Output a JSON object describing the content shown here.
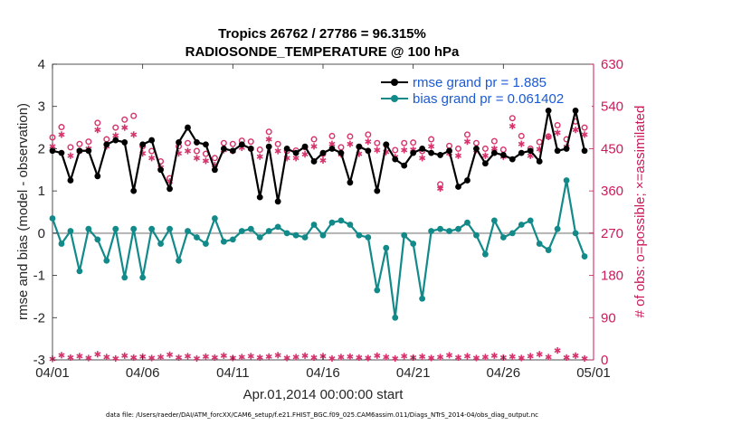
{
  "chart_data": {
    "type": "line",
    "title": "Tropics 26762 / 27786 = 96.315%",
    "subtitle": "RADIOSONDE_TEMPERATURE @ 100 hPa",
    "xlabel": "Apr.01,2014 00:00:00 start",
    "ylabel": "rmse and bias (model - observation)",
    "ylabel_right": "# of obs: o=possible; ×=assimilated",
    "x_ticks": [
      "04/01",
      "04/06",
      "04/11",
      "04/16",
      "04/21",
      "04/26",
      "05/01"
    ],
    "y_ticks": [
      "4",
      "3",
      "2",
      "1",
      "0",
      "-1",
      "-2",
      "-3"
    ],
    "y_right_ticks": [
      "630",
      "540",
      "450",
      "360",
      "270",
      "180",
      "90",
      "0"
    ],
    "xlim": [
      0,
      30
    ],
    "ylim": [
      -3,
      4
    ],
    "y_right_lim": [
      0,
      630
    ],
    "colors": {
      "rmse": "#000000",
      "bias": "#128a8a",
      "obs": "#d6336c",
      "zero_line": "#b3b3b3"
    },
    "x": [
      0,
      0.5,
      1,
      1.5,
      2,
      2.5,
      3,
      3.5,
      4,
      4.5,
      5,
      5.5,
      6,
      6.5,
      7,
      7.5,
      8,
      8.5,
      9,
      9.5,
      10,
      10.5,
      11,
      11.5,
      12,
      12.5,
      13,
      13.5,
      14,
      14.5,
      15,
      15.5,
      16,
      16.5,
      17,
      17.5,
      18,
      18.5,
      19,
      19.5,
      20,
      20.5,
      21,
      21.5,
      22,
      22.5,
      23,
      23.5,
      24,
      24.5,
      25,
      25.5,
      26,
      26.5,
      27,
      27.5,
      28,
      28.5,
      29,
      29.5
    ],
    "series": [
      {
        "name": "rmse",
        "legend": "rmse grand pr = 1.885",
        "values": [
          1.95,
          1.9,
          1.25,
          1.95,
          1.95,
          1.35,
          2.1,
          2.2,
          2.15,
          1.0,
          2.1,
          2.2,
          1.5,
          1.05,
          2.15,
          2.5,
          2.15,
          2.1,
          1.5,
          2.0,
          1.95,
          2.1,
          2.0,
          0.85,
          2.05,
          0.75,
          2.0,
          1.9,
          2.05,
          1.7,
          1.9,
          2.0,
          1.9,
          1.2,
          2.05,
          1.95,
          1.0,
          2.1,
          1.75,
          1.6,
          1.9,
          2.0,
          1.9,
          1.85,
          1.95,
          1.1,
          1.25,
          2.0,
          1.65,
          1.9,
          1.85,
          1.75,
          1.9,
          1.95,
          1.7,
          2.9,
          1.95,
          2.0,
          2.9,
          1.95
        ],
        "line_values": [
          1.95,
          1.9,
          1.25,
          1.95,
          1.95,
          1.35,
          2.1,
          2.2,
          2.15,
          1.0,
          2.1,
          2.2,
          1.5,
          1.05,
          2.15,
          2.5,
          2.15,
          2.1,
          1.5,
          2.0,
          1.95,
          2.1,
          2.0,
          0.85,
          2.05,
          0.75,
          2.0,
          1.9,
          2.05,
          1.7,
          1.9,
          2.0,
          1.9,
          1.2,
          2.05,
          1.95,
          1.0,
          2.1,
          1.75,
          1.6,
          1.9,
          2.0,
          1.9,
          1.85,
          1.95,
          1.1,
          1.25,
          2.0,
          1.65,
          1.9,
          1.85,
          1.75,
          1.9,
          1.95,
          1.7,
          2.9,
          1.95,
          2.0,
          2.9,
          1.95
        ]
      },
      {
        "name": "bias",
        "legend": "bias grand pr = 0.061402",
        "values": [
          0.35,
          -0.25,
          0.05,
          -0.9,
          0.1,
          -0.15,
          -0.65,
          0.1,
          -1.05,
          0.1,
          -1.05,
          0.1,
          -0.25,
          0.1,
          -0.65,
          0.05,
          -0.1,
          -0.25,
          0.35,
          -0.2,
          -0.15,
          0.05,
          0.1,
          -0.1,
          0.05,
          0.15,
          0.0,
          -0.05,
          -0.1,
          0.2,
          -0.05,
          0.25,
          0.3,
          0.2,
          -0.05,
          -0.1,
          -1.35,
          -0.35,
          -2.0,
          -0.05,
          -0.25,
          -1.55,
          0.05,
          0.1,
          0.05,
          0.1,
          0.25,
          -0.05,
          -0.5,
          0.3,
          -0.1,
          0.0,
          0.2,
          0.3,
          -0.25,
          -0.4,
          0.1,
          1.25,
          0.0,
          -0.55
        ],
        "line_values": [
          0.35,
          -0.25,
          0.05,
          -0.9,
          0.1,
          -0.15,
          -0.65,
          0.1,
          -1.05,
          0.1,
          -1.05,
          0.1,
          -0.25,
          0.1,
          -0.65,
          0.05,
          -0.1,
          -0.25,
          0.35,
          -0.2,
          -0.15,
          0.05,
          0.1,
          -0.1,
          0.05,
          0.15,
          0.0,
          -0.05,
          -0.1,
          0.2,
          -0.05,
          0.25,
          0.3,
          0.2,
          -0.05,
          -0.1,
          -1.35,
          -0.35,
          -2.0,
          -0.05,
          -0.25,
          -1.55,
          0.05,
          0.1,
          0.05,
          0.1,
          0.25,
          -0.05,
          -0.5,
          0.3,
          -0.1,
          0.0,
          0.2,
          0.3,
          -0.25,
          -0.4,
          0.1,
          1.25,
          0.0,
          -0.55
        ]
      },
      {
        "name": "obs_possible",
        "axis": "right",
        "marker": "o",
        "values": [
          474,
          496,
          453,
          460,
          465,
          505,
          470,
          495,
          512,
          520,
          455,
          445,
          423,
          387,
          455,
          462,
          445,
          439,
          430,
          462,
          460,
          467,
          465,
          448,
          486,
          460,
          445,
          446,
          453,
          470,
          439,
          477,
          453,
          476,
          454,
          480,
          462,
          458,
          447,
          462,
          463,
          445,
          470,
          374,
          456,
          450,
          480,
          462,
          450,
          466,
          448,
          515,
          477,
          450,
          464,
          476,
          500,
          470,
          508,
          495
        ]
      },
      {
        "name": "obs_assimilated",
        "axis": "right",
        "marker": "*",
        "values": [
          455,
          480,
          435,
          445,
          450,
          490,
          455,
          478,
          495,
          480,
          440,
          430,
          410,
          380,
          440,
          445,
          430,
          424,
          415,
          447,
          445,
          452,
          450,
          433,
          470,
          445,
          430,
          430,
          438,
          455,
          425,
          460,
          438,
          460,
          439,
          465,
          447,
          443,
          432,
          447,
          448,
          430,
          455,
          365,
          440,
          435,
          465,
          447,
          435,
          450,
          433,
          498,
          460,
          435,
          449,
          475,
          484,
          454,
          490,
          480
        ]
      },
      {
        "name": "obs_bottom",
        "axis": "right",
        "marker": "*",
        "values": [
          2,
          10,
          5,
          8,
          4,
          12,
          6,
          3,
          9,
          5,
          7,
          4,
          6,
          11,
          5,
          8,
          3,
          7,
          5,
          9,
          4,
          6,
          8,
          5,
          7,
          10,
          4,
          6,
          9,
          5,
          8,
          3,
          6,
          7,
          5,
          4,
          9,
          6,
          3,
          8,
          5,
          7,
          4,
          6,
          10,
          5,
          8,
          4,
          6,
          9,
          5,
          7,
          4,
          8,
          12,
          6,
          20,
          5,
          9,
          3
        ]
      }
    ]
  },
  "footer": {
    "data_file": "data file: /Users/raeder/DAI/ATM_forcXX/CAM6_setup/f.e21.FHIST_BGC.f09_025.CAM6assim.011/Diags_NTrS_2014-04/obs_diag_output.nc"
  }
}
